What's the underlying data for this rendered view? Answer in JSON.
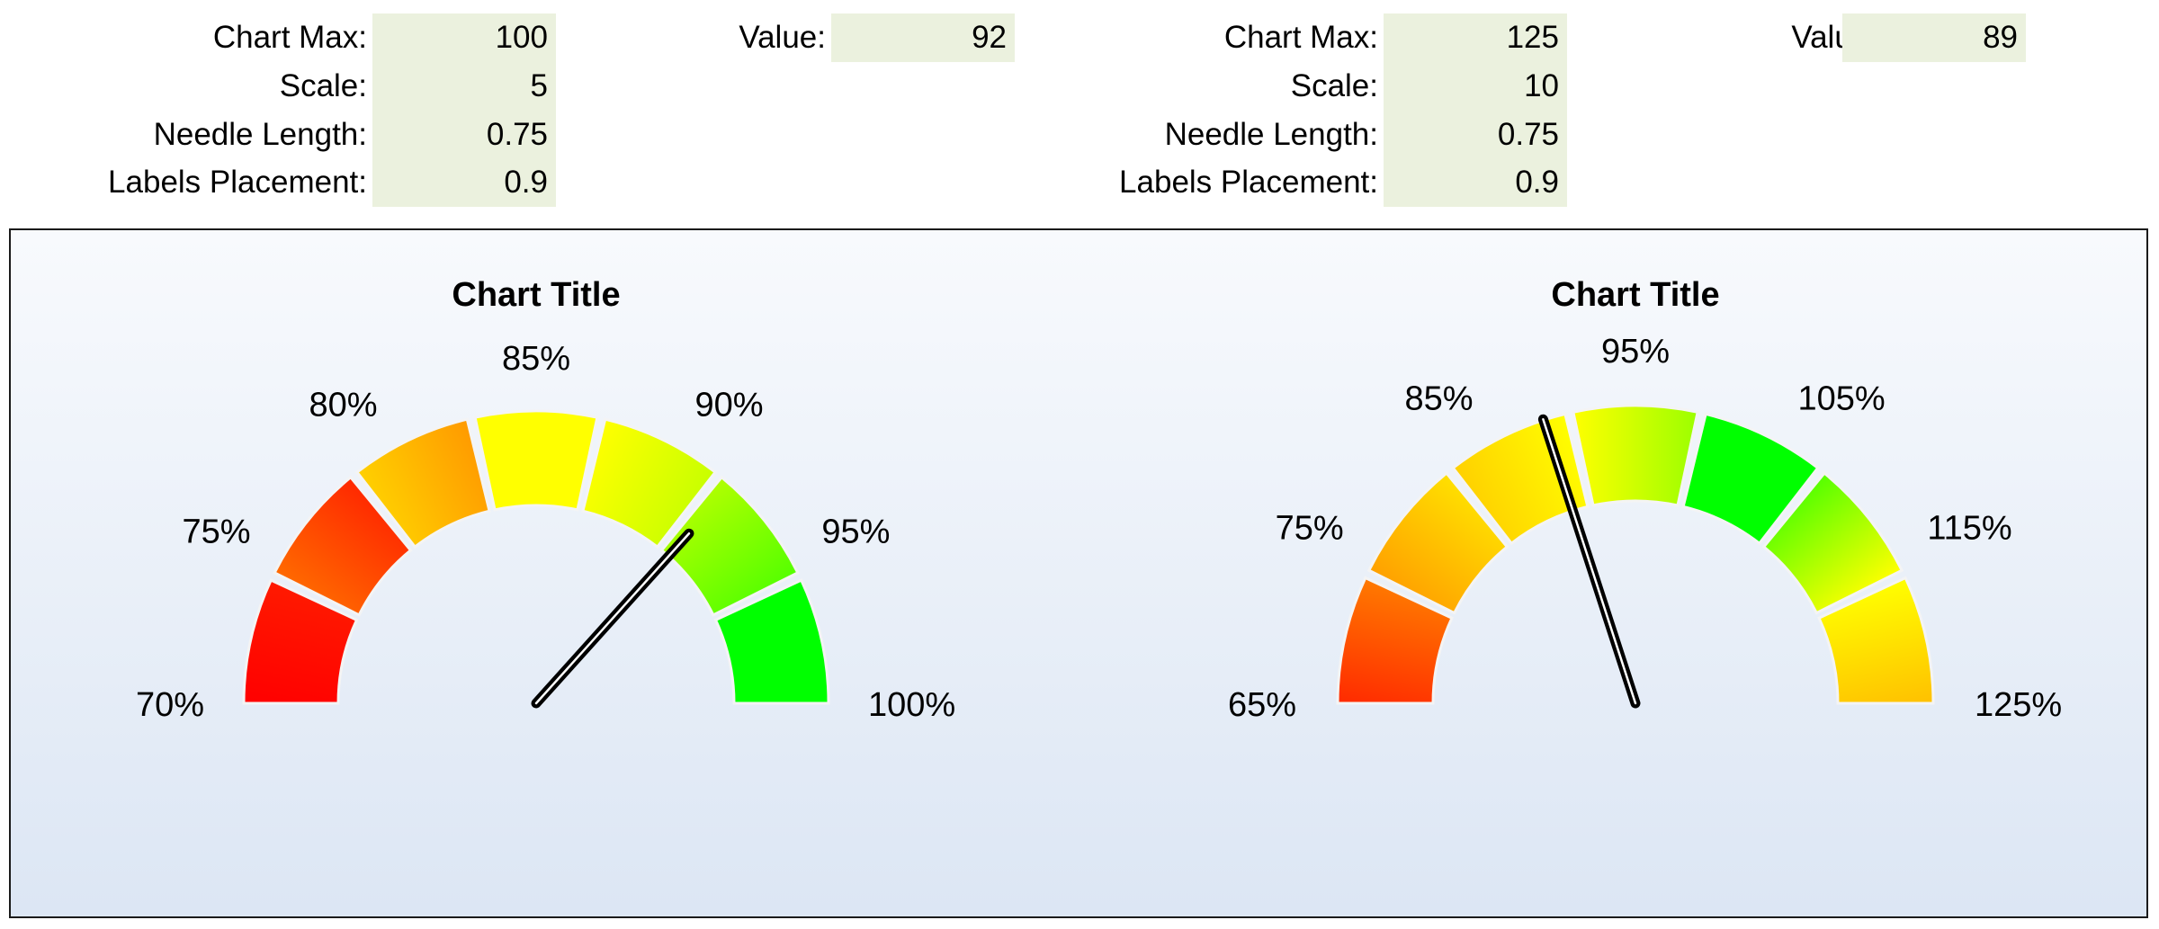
{
  "gauge1": {
    "params": {
      "chart_max_label": "Chart Max:",
      "chart_max": "100",
      "scale_label": "Scale:",
      "scale": "5",
      "needle_length_label": "Needle Length:",
      "needle_length": "0.75",
      "labels_placement_label": "Labels Placement:",
      "labels_placement": "0.9",
      "value_label": "Value:",
      "value": "92"
    }
  },
  "gauge2": {
    "params": {
      "chart_max_label": "Chart Max:",
      "chart_max": "125",
      "scale_label": "Scale:",
      "scale": "10",
      "needle_length_label": "Needle Length:",
      "needle_length": "0.75",
      "labels_placement_label": "Labels Placement:",
      "labels_placement": "0.9",
      "value_label": "Value:",
      "value": "89"
    }
  },
  "chart_data": [
    {
      "type": "gauge",
      "title": "Chart Title",
      "min": 70,
      "max": 100,
      "step": 5,
      "value": 92,
      "tick_labels": [
        "70%",
        "75%",
        "80%",
        "85%",
        "90%",
        "95%",
        "100%"
      ],
      "band_colors": [
        [
          "#ff0000",
          "#ff1a00"
        ],
        [
          "#ff6a00",
          "#ff2800"
        ],
        [
          "#ffd000",
          "#ff9a00"
        ],
        [
          "#ffff00",
          "#ffff00"
        ],
        [
          "#ffff00",
          "#c8ff00"
        ],
        [
          "#b0ff00",
          "#55ff00"
        ],
        [
          "#00ff00",
          "#00ff00"
        ]
      ]
    },
    {
      "type": "gauge",
      "title": "Chart Title",
      "min": 65,
      "max": 125,
      "step": 10,
      "value": 89,
      "tick_labels": [
        "65%",
        "75%",
        "85%",
        "95%",
        "105%",
        "115%",
        "125%"
      ],
      "band_colors": [
        [
          "#ff2a00",
          "#ff7a00"
        ],
        [
          "#ffa000",
          "#ffe000"
        ],
        [
          "#ffd000",
          "#ffff00"
        ],
        [
          "#ffff00",
          "#9cff00"
        ],
        [
          "#00ff00",
          "#00ff00"
        ],
        [
          "#55ff00",
          "#ffff00"
        ],
        [
          "#ffff00",
          "#ffc000"
        ]
      ]
    }
  ]
}
